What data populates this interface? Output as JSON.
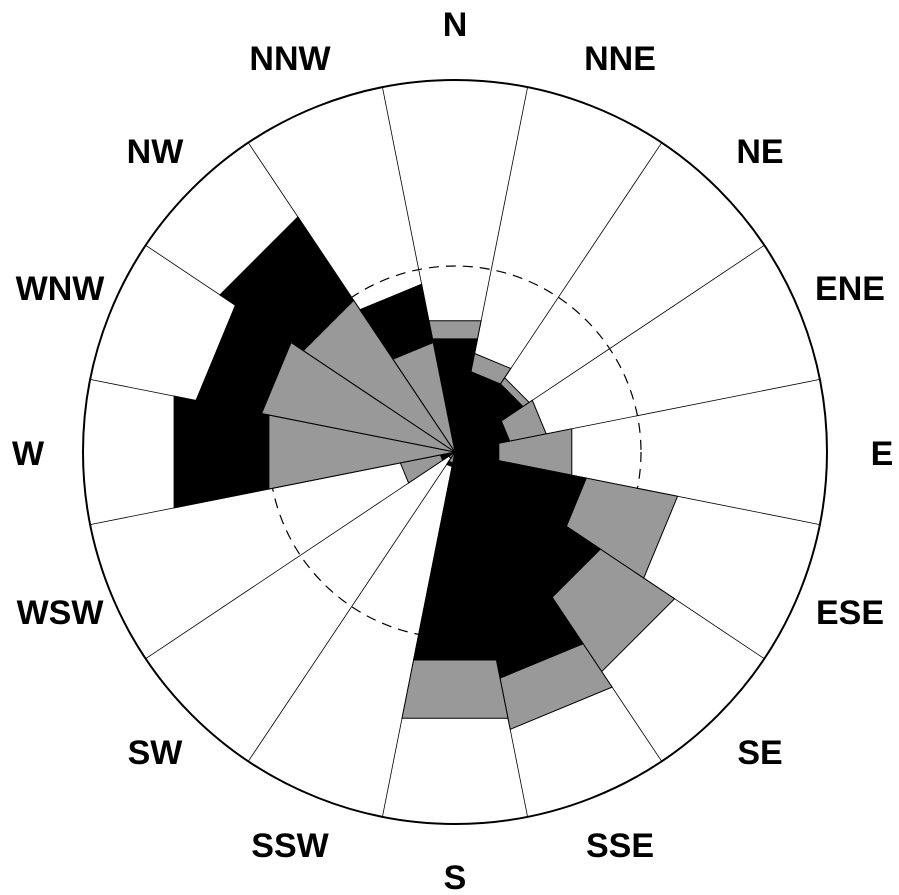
{
  "chart_data": {
    "type": "wind-rose",
    "directions": [
      "N",
      "NNE",
      "NE",
      "ENE",
      "E",
      "ESE",
      "SE",
      "SSE",
      "S",
      "SSW",
      "SW",
      "WSW",
      "W",
      "WNW",
      "NW",
      "NNW"
    ],
    "rmax": 100,
    "dashed_ring": 50,
    "grid": true,
    "series": [
      {
        "color": "#000000",
        "values": [
          31,
          22,
          22,
          15,
          12,
          36,
          47,
          62,
          57,
          4,
          2,
          4,
          77,
          71,
          76,
          46
        ]
      },
      {
        "color": "#999999",
        "values": [
          36,
          27,
          24,
          25,
          32,
          61,
          71,
          76,
          73,
          3,
          2,
          15,
          51,
          53,
          49,
          30
        ]
      }
    ]
  }
}
